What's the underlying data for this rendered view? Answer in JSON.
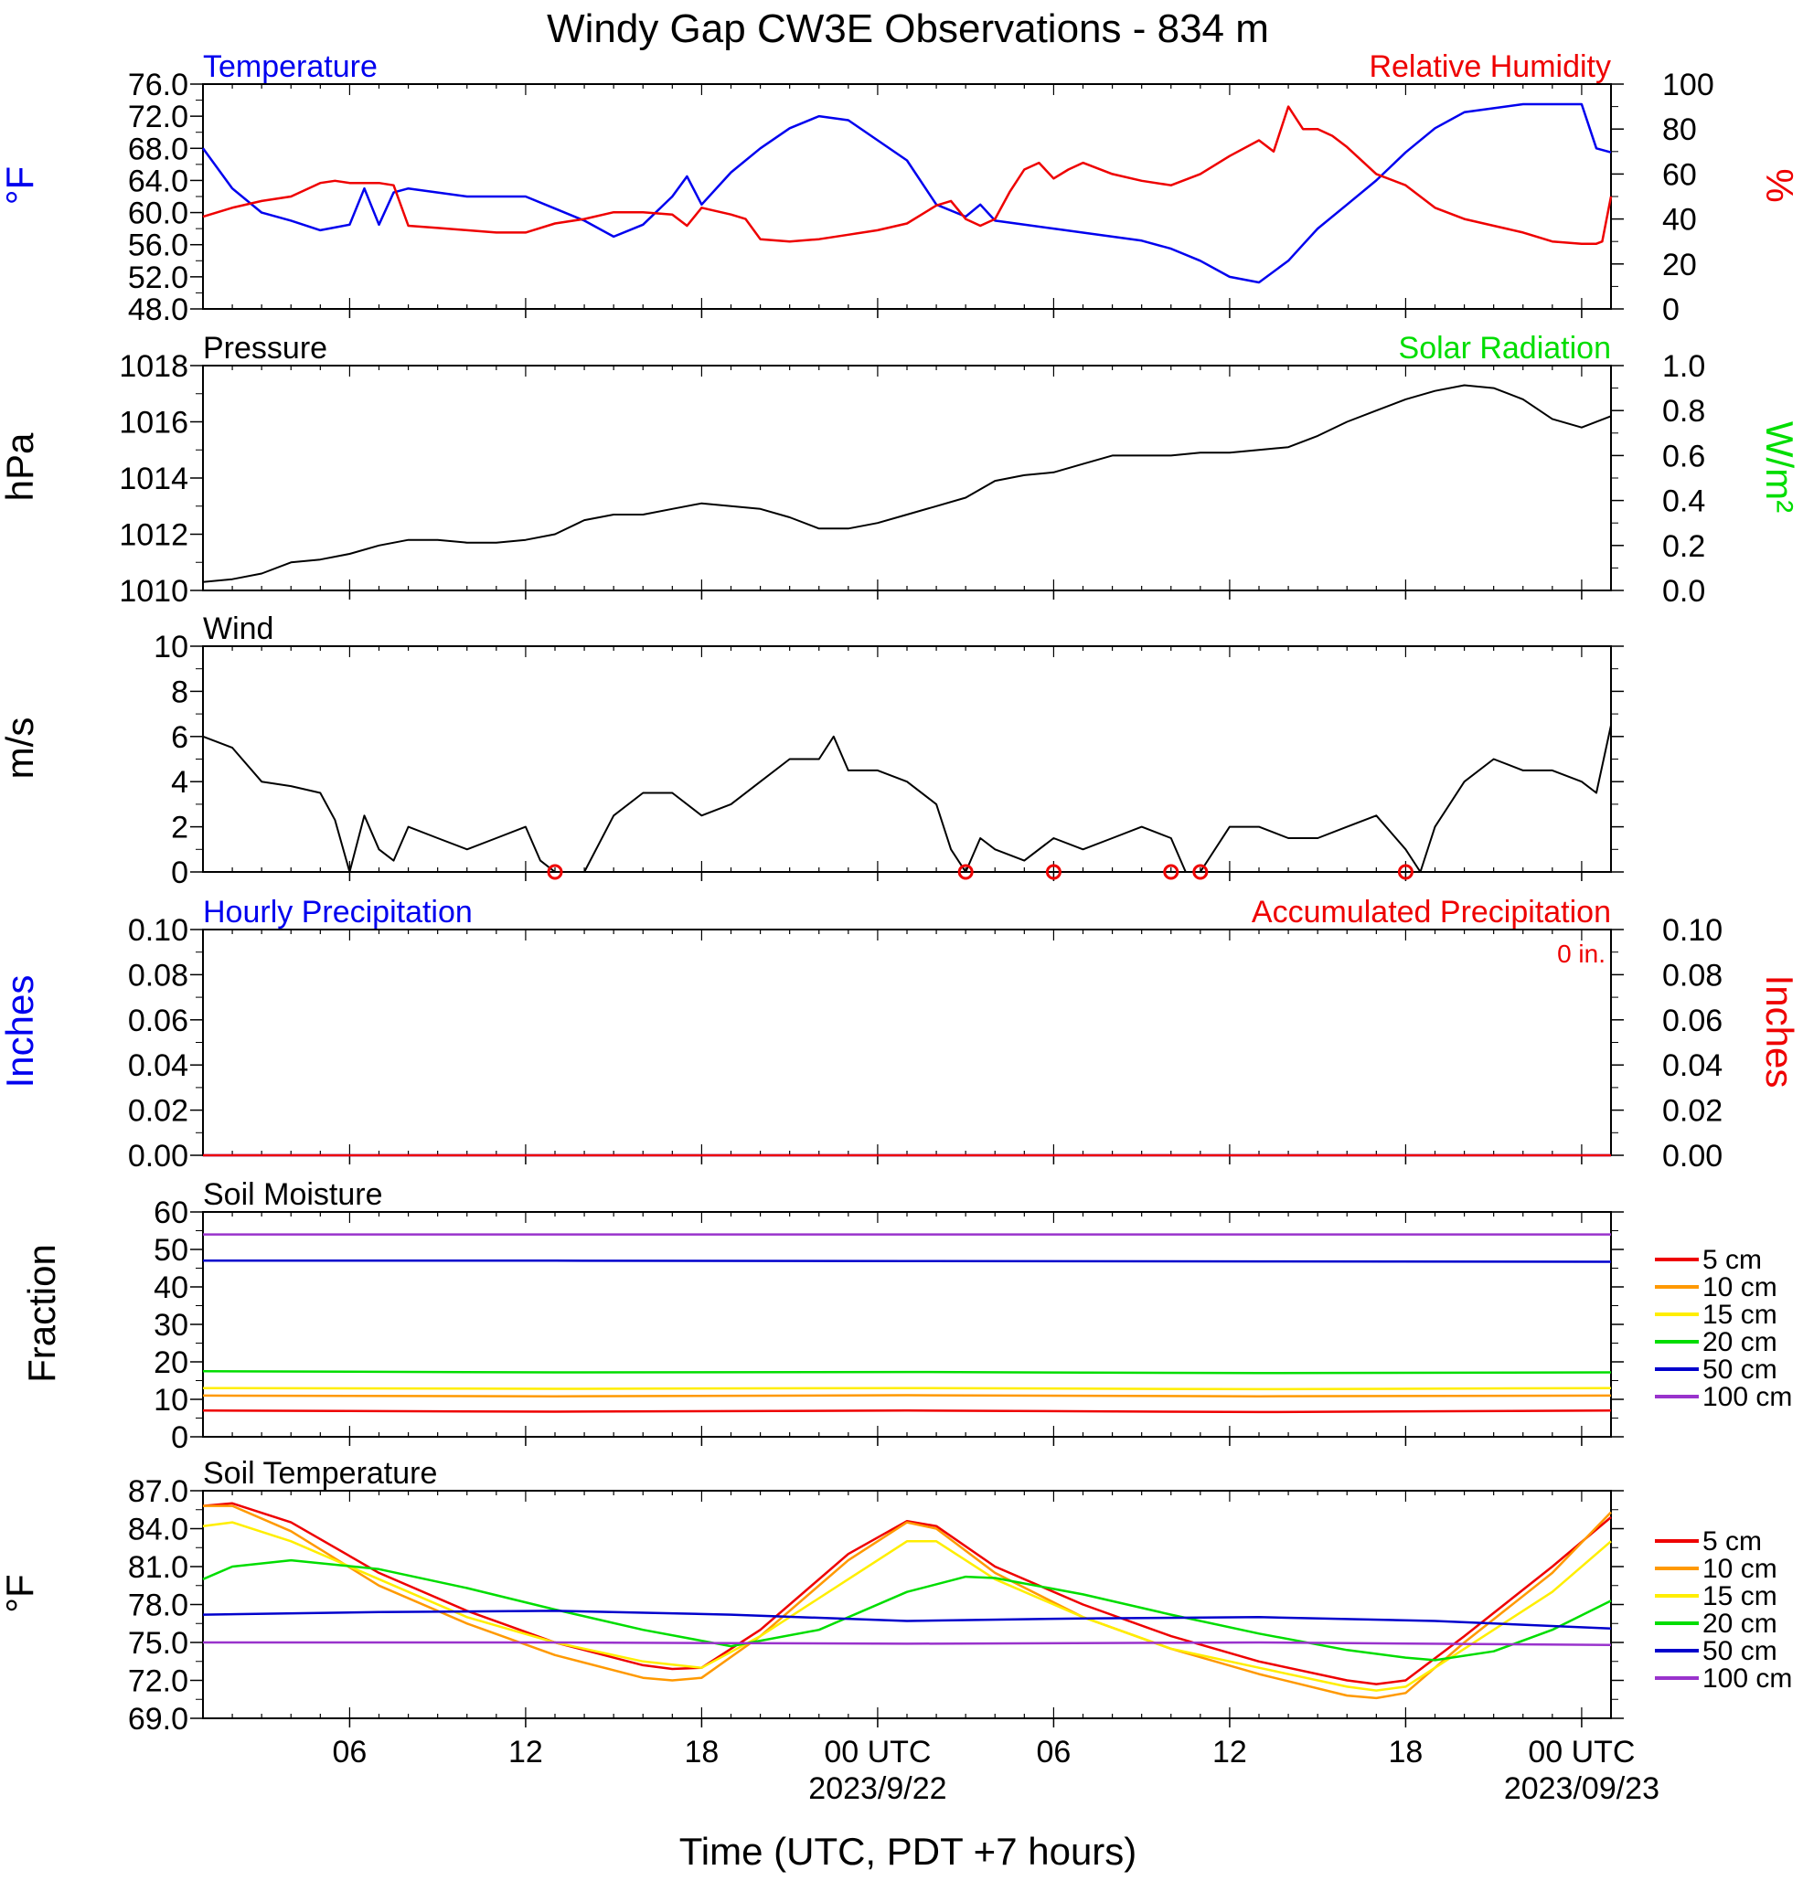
{
  "title": "Windy Gap CW3E Observations - 834 m",
  "x_axis": {
    "label": "Time (UTC, PDT +7 hours)",
    "start_hour_utc": 1,
    "end_hour_utc": 49,
    "ticks": [
      {
        "hour": 6,
        "label": "06",
        "date": ""
      },
      {
        "hour": 12,
        "label": "12",
        "date": ""
      },
      {
        "hour": 18,
        "label": "18",
        "date": ""
      },
      {
        "hour": 24,
        "label": "00 UTC",
        "date": "2023/9/22"
      },
      {
        "hour": 30,
        "label": "06",
        "date": ""
      },
      {
        "hour": 36,
        "label": "12",
        "date": ""
      },
      {
        "hour": 42,
        "label": "18",
        "date": ""
      },
      {
        "hour": 48,
        "label": "00 UTC",
        "date": "2023/09/23"
      }
    ]
  },
  "colors": {
    "temperature": "#0000ee",
    "humidity": "#ee0000",
    "pressure": "#000000",
    "solar": "#00dd00",
    "wind": "#000000",
    "barb": "#ee0000",
    "soil_5": "#ee0000",
    "soil_10": "#ff9900",
    "soil_15": "#ffee00",
    "soil_20": "#00dd00",
    "soil_50": "#0000cc",
    "soil_100": "#9933cc"
  },
  "chart_data": [
    {
      "type": "line",
      "id": "temp_rh",
      "left_title": "Temperature",
      "right_title": "Relative Humidity",
      "ylabel_left": "°F",
      "ylabel_right": "%",
      "ylim_left": [
        48,
        76
      ],
      "ylim_right": [
        0,
        100
      ],
      "yticks_left": [
        "48.0",
        "52.0",
        "56.0",
        "60.0",
        "64.0",
        "68.0",
        "72.0",
        "76.0"
      ],
      "yticks_right": [
        "0",
        "20",
        "40",
        "60",
        "80",
        "100"
      ],
      "series": [
        {
          "axis": "left",
          "color_key": "temperature",
          "x": [
            1,
            2,
            3,
            4,
            5,
            6,
            6.5,
            7,
            7.5,
            8,
            9,
            10,
            11,
            12,
            13,
            14,
            15,
            16,
            17,
            17.5,
            18,
            19,
            20,
            21,
            22,
            23,
            24,
            25,
            26,
            27,
            27.5,
            28,
            29,
            30,
            31,
            32,
            33,
            34,
            35,
            36,
            37,
            38,
            38.5,
            39,
            40,
            41,
            42,
            43,
            44,
            45,
            46,
            47,
            48,
            48.5,
            49
          ],
          "y": [
            68,
            63,
            60,
            59,
            57.8,
            58.5,
            63,
            58.5,
            62.5,
            63,
            62.5,
            62,
            62,
            62,
            60.5,
            59,
            57,
            58.5,
            62,
            64.5,
            61,
            65,
            68,
            70.5,
            72,
            71.5,
            69,
            66.5,
            61,
            59.5,
            61,
            59,
            58.5,
            58,
            57.5,
            57,
            56.5,
            55.5,
            54,
            52,
            51.3,
            54,
            56,
            58,
            61,
            64,
            67.5,
            70.5,
            72.5,
            73,
            73.5,
            73.5,
            73.5,
            68,
            67.5
          ]
        },
        {
          "axis": "right",
          "color_key": "humidity",
          "x": [
            1,
            2,
            3,
            4,
            5,
            5.5,
            6,
            7,
            7.5,
            8,
            9,
            10,
            11,
            12,
            13,
            14,
            15,
            16,
            17,
            17.5,
            18,
            19,
            19.5,
            20,
            21,
            22,
            23,
            24,
            25,
            26,
            26.5,
            27,
            27.5,
            28,
            28.5,
            29,
            29.5,
            30,
            30.5,
            31,
            32,
            33,
            34,
            35,
            36,
            37,
            37.5,
            38,
            38.5,
            39,
            39.5,
            40,
            41,
            42,
            43,
            44,
            45,
            46,
            47,
            48,
            48.5,
            48.7,
            49
          ],
          "y": [
            41,
            45,
            48,
            50,
            56,
            57,
            56,
            56,
            55,
            37,
            36,
            35,
            34,
            34,
            38,
            40,
            43,
            43,
            42,
            37,
            45,
            42,
            40,
            31,
            30,
            31,
            33,
            35,
            38,
            46,
            48,
            40,
            37,
            40,
            52,
            62,
            65,
            58,
            62,
            65,
            60,
            57,
            55,
            60,
            68,
            75,
            70,
            90,
            80,
            80,
            77,
            72,
            60,
            55,
            45,
            40,
            37,
            34,
            30,
            29,
            29,
            30,
            50
          ]
        }
      ]
    },
    {
      "type": "line",
      "id": "pressure_solar",
      "left_title": "Pressure",
      "right_title": "Solar Radiation",
      "ylabel_left": "hPa",
      "ylabel_right": "W/m²",
      "ylim_left": [
        1010,
        1018
      ],
      "ylim_right": [
        0,
        1.0
      ],
      "yticks_left": [
        "1010",
        "1012",
        "1014",
        "1016",
        "1018"
      ],
      "yticks_right": [
        "0.0",
        "0.2",
        "0.4",
        "0.6",
        "0.8",
        "1.0"
      ],
      "series": [
        {
          "axis": "left",
          "color_key": "pressure",
          "x": [
            1,
            2,
            3,
            4,
            5,
            6,
            7,
            8,
            9,
            10,
            11,
            12,
            13,
            14,
            15,
            16,
            17,
            18,
            19,
            20,
            21,
            22,
            23,
            24,
            25,
            26,
            27,
            28,
            29,
            30,
            31,
            32,
            33,
            34,
            35,
            36,
            37,
            38,
            39,
            40,
            41,
            42,
            43,
            44,
            45,
            46,
            47,
            48,
            49
          ],
          "y": [
            1010.3,
            1010.4,
            1010.6,
            1011.0,
            1011.1,
            1011.3,
            1011.6,
            1011.8,
            1011.8,
            1011.7,
            1011.7,
            1011.8,
            1012.0,
            1012.5,
            1012.7,
            1012.7,
            1012.9,
            1013.1,
            1013.0,
            1012.9,
            1012.6,
            1012.2,
            1012.2,
            1012.4,
            1012.7,
            1013.0,
            1013.3,
            1013.9,
            1014.1,
            1014.2,
            1014.5,
            1014.8,
            1014.8,
            1014.8,
            1014.9,
            1014.9,
            1015.0,
            1015.1,
            1015.5,
            1016.0,
            1016.4,
            1016.8,
            1017.1,
            1017.3,
            1017.2,
            1016.8,
            1016.1,
            1015.8,
            1016.2
          ]
        }
      ]
    },
    {
      "type": "line",
      "id": "wind",
      "left_title": "Wind",
      "ylabel_left": "m/s",
      "ylim_left": [
        0,
        10
      ],
      "yticks_left": [
        "0",
        "2",
        "4",
        "6",
        "8",
        "10"
      ],
      "series": [
        {
          "axis": "left",
          "color_key": "wind",
          "x": [
            1,
            2,
            3,
            4,
            5,
            5.5,
            6,
            6.5,
            7,
            7.5,
            8,
            9,
            10,
            11,
            12,
            12.5,
            13,
            14,
            15,
            16,
            17,
            18,
            19,
            20,
            21,
            22,
            22.5,
            23,
            24,
            25,
            26,
            26.5,
            27,
            27.5,
            28,
            29,
            30,
            31,
            32,
            33,
            34,
            34.5,
            35,
            36,
            37,
            38,
            39,
            40,
            41,
            42,
            42.5,
            43,
            44,
            45,
            46,
            47,
            48,
            48.5,
            49
          ],
          "y": [
            6,
            5.5,
            4,
            3.8,
            3.5,
            2.3,
            0,
            2.5,
            1,
            0.5,
            2,
            1.5,
            1,
            1.5,
            2,
            0.5,
            0,
            0,
            2.5,
            3.5,
            3.5,
            2.5,
            3,
            4,
            5,
            5,
            6,
            4.5,
            4.5,
            4,
            3,
            1,
            0,
            1.5,
            1,
            0.5,
            1.5,
            1,
            1.5,
            2,
            1.5,
            0,
            0,
            2,
            2,
            1.5,
            1.5,
            2,
            2.5,
            1,
            0,
            2,
            4,
            5,
            4.5,
            4.5,
            4,
            3.5,
            6.5
          ]
        }
      ],
      "calm_circles_x": [
        13,
        27,
        30,
        34,
        35,
        42
      ]
    },
    {
      "type": "line",
      "id": "precip",
      "left_title": "Hourly Precipitation",
      "right_title": "Accumulated Precipitation",
      "annotation": "0 in.",
      "ylabel_left": "Inches",
      "ylabel_right": "Inches",
      "ylim_left": [
        0,
        0.1
      ],
      "ylim_right": [
        0,
        0.1
      ],
      "yticks_left": [
        "0.00",
        "0.02",
        "0.04",
        "0.06",
        "0.08",
        "0.10"
      ],
      "yticks_right": [
        "0.00",
        "0.02",
        "0.04",
        "0.06",
        "0.08",
        "0.10"
      ],
      "series": [
        {
          "axis": "left",
          "color_key": "temperature",
          "x": [
            1,
            49
          ],
          "y": [
            0,
            0
          ]
        },
        {
          "axis": "right",
          "color_key": "humidity",
          "x": [
            1,
            49
          ],
          "y": [
            0,
            0
          ]
        }
      ]
    },
    {
      "type": "line",
      "id": "soil_moisture",
      "left_title": "Soil Moisture",
      "ylabel_left": "Fraction",
      "ylim_left": [
        0,
        60
      ],
      "yticks_left": [
        "0",
        "10",
        "20",
        "30",
        "40",
        "50",
        "60"
      ],
      "legend": [
        "5 cm",
        "10 cm",
        "15 cm",
        "20 cm",
        "50 cm",
        "100 cm"
      ],
      "series": [
        {
          "name": "5 cm",
          "color_key": "soil_5",
          "x": [
            1,
            13,
            25,
            37,
            49
          ],
          "y": [
            7,
            6.7,
            7,
            6.6,
            7
          ]
        },
        {
          "name": "10 cm",
          "color_key": "soil_10",
          "x": [
            1,
            13,
            25,
            37,
            49
          ],
          "y": [
            11,
            10.8,
            11.1,
            10.8,
            11
          ]
        },
        {
          "name": "15 cm",
          "color_key": "soil_15",
          "x": [
            1,
            13,
            25,
            37,
            49
          ],
          "y": [
            13,
            12.8,
            13,
            12.7,
            13
          ]
        },
        {
          "name": "20 cm",
          "color_key": "soil_20",
          "x": [
            1,
            13,
            25,
            37,
            49
          ],
          "y": [
            17.5,
            17.2,
            17.3,
            17,
            17.2
          ]
        },
        {
          "name": "50 cm",
          "color_key": "soil_50",
          "x": [
            1,
            13,
            25,
            37,
            49
          ],
          "y": [
            47,
            47,
            46.9,
            46.8,
            46.7
          ]
        },
        {
          "name": "100 cm",
          "color_key": "soil_100",
          "x": [
            1,
            13,
            25,
            37,
            49
          ],
          "y": [
            54,
            54,
            54,
            54,
            54
          ]
        }
      ]
    },
    {
      "type": "line",
      "id": "soil_temp",
      "left_title": "Soil Temperature",
      "ylabel_left": "°F",
      "ylim_left": [
        69,
        87
      ],
      "yticks_left": [
        "69.0",
        "72.0",
        "75.0",
        "78.0",
        "81.0",
        "84.0",
        "87.0"
      ],
      "legend": [
        "5 cm",
        "10 cm",
        "15 cm",
        "20 cm",
        "50 cm",
        "100 cm"
      ],
      "series": [
        {
          "name": "5 cm",
          "color_key": "soil_5",
          "x": [
            1,
            2,
            4,
            7,
            10,
            13,
            16,
            17,
            18,
            20,
            23,
            25,
            26,
            28,
            31,
            34,
            37,
            40,
            41,
            42,
            44,
            47,
            49
          ],
          "y": [
            85.8,
            86,
            84.5,
            80.5,
            77.5,
            75,
            73.2,
            72.9,
            73,
            76,
            82,
            84.6,
            84.2,
            81,
            78,
            75.5,
            73.5,
            72,
            71.7,
            72,
            75.5,
            81,
            84.9
          ]
        },
        {
          "name": "10 cm",
          "color_key": "soil_10",
          "x": [
            1,
            2,
            4,
            7,
            10,
            13,
            16,
            17,
            18,
            20,
            23,
            25,
            26,
            28,
            31,
            34,
            37,
            40,
            41,
            42,
            44,
            47,
            49
          ],
          "y": [
            85.8,
            85.8,
            83.8,
            79.5,
            76.5,
            74,
            72.2,
            72,
            72.2,
            75.5,
            81.5,
            84.5,
            84,
            80.5,
            77,
            74.5,
            72.5,
            70.8,
            70.6,
            71,
            75,
            80.5,
            85.3
          ]
        },
        {
          "name": "15 cm",
          "color_key": "soil_15",
          "x": [
            1,
            2,
            4,
            7,
            10,
            13,
            16,
            18,
            20,
            23,
            25,
            26,
            28,
            31,
            34,
            37,
            40,
            41,
            42,
            44,
            47,
            49
          ],
          "y": [
            84.2,
            84.5,
            83,
            80,
            77,
            75,
            73.5,
            73,
            75.5,
            80,
            83,
            83,
            80,
            77,
            74.5,
            73,
            71.5,
            71.2,
            71.5,
            74.5,
            79,
            83
          ]
        },
        {
          "name": "20 cm",
          "color_key": "soil_20",
          "x": [
            1,
            2,
            4,
            7,
            10,
            13,
            16,
            19,
            22,
            25,
            27,
            28,
            31,
            34,
            37,
            40,
            42,
            43,
            45,
            47,
            49
          ],
          "y": [
            80,
            81,
            81.5,
            80.8,
            79.3,
            77.6,
            76,
            74.7,
            76,
            79,
            80.2,
            80.1,
            78.8,
            77.2,
            75.7,
            74.4,
            73.8,
            73.6,
            74.3,
            76,
            78.3
          ]
        },
        {
          "name": "50 cm",
          "color_key": "soil_50",
          "x": [
            1,
            7,
            13,
            19,
            25,
            31,
            37,
            43,
            49
          ],
          "y": [
            77.2,
            77.4,
            77.5,
            77.2,
            76.7,
            76.9,
            77,
            76.7,
            76.1
          ]
        },
        {
          "name": "100 cm",
          "color_key": "soil_100",
          "x": [
            1,
            13,
            25,
            37,
            49
          ],
          "y": [
            75,
            75,
            74.9,
            75,
            74.8
          ]
        }
      ]
    }
  ]
}
